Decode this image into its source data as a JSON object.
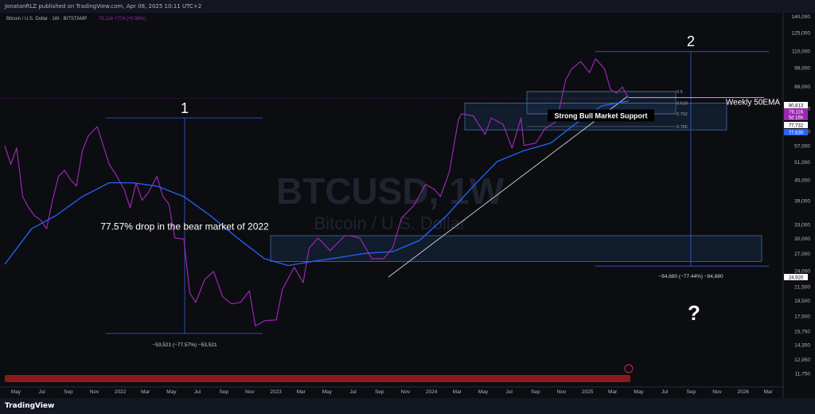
{
  "header": {
    "publish_line": "JonatanRLZ published on TradingView.com, Apr 08, 2025 10:11 UTC+2",
    "symbol_info": "Bitcoin / U.S. Dollar · 1W · BITSTAMP",
    "price_info": "79,116 +774 (+0.99%)"
  },
  "watermark": {
    "ticker": "BTCUSD, 1W",
    "name": "Bitcoin / U.S. Dollar"
  },
  "footer": {
    "brand": "TradingView"
  },
  "annotations": {
    "label_1": "1",
    "label_2": "2",
    "drop_text": "77.57% drop in the bear market of 2022",
    "measure_1": "−53,521 (−77.57%) −53,521",
    "measure_2": "−84,680 (−77.44%) −84,680",
    "question": "?",
    "support_label": "Strong Bull Market Support",
    "ema_label": "Weekly 50EMA"
  },
  "fib_levels": [
    {
      "label": "0.5",
      "price": 82900
    },
    {
      "label": "0.618",
      "price": 76500
    },
    {
      "label": "0.702",
      "price": 71000
    },
    {
      "label": "0.786",
      "price": 65000
    }
  ],
  "price_tags": [
    {
      "text": "80,813",
      "bg": "#ffffff",
      "fg": "#000000"
    },
    {
      "text": "79,116",
      "bg": "#9c27b0",
      "fg": "#ffffff"
    },
    {
      "text": "5d 16h",
      "bg": "#9c27b0",
      "fg": "#ffffff"
    },
    {
      "text": "77,732",
      "bg": "#ffffff",
      "fg": "#000000"
    },
    {
      "text": "77,630",
      "bg": "#2962ff",
      "fg": "#ffffff"
    },
    {
      "text": "24,920",
      "bg": "#ffffff",
      "fg": "#000000"
    }
  ],
  "colors": {
    "price_line": "#9c27b0",
    "ema_line": "#2962ff",
    "zone": "#1e3a5f",
    "measure": "#3b5bdb"
  },
  "chart_data": {
    "type": "line",
    "title": "",
    "y_scale": "log",
    "ylim": [
      10800,
      140000
    ],
    "y_ticks": [
      140000,
      125000,
      110000,
      98000,
      86000,
      74000,
      63000,
      57000,
      51000,
      45000,
      39000,
      33000,
      30000,
      27000,
      24000,
      21500,
      19500,
      17500,
      15750,
      14350,
      12950,
      11750
    ],
    "y_tick_labels": [
      "140,000",
      "125,000",
      "110,000",
      "98,000",
      "86,000",
      "74,000",
      "63,000",
      "57,000",
      "51,000",
      "45,000",
      "39,000",
      "33,000",
      "30,000",
      "27,000",
      "24,000",
      "21,500",
      "19,500",
      "17,500",
      "15,750",
      "14,350",
      "12,950",
      "11,750"
    ],
    "x_ticks": [
      "May",
      "Jul",
      "Sep",
      "Nov",
      "2022",
      "Mar",
      "May",
      "Jul",
      "Sep",
      "Nov",
      "2023",
      "Mar",
      "May",
      "Jul",
      "Sep",
      "Nov",
      "2024",
      "Mar",
      "May",
      "Jul",
      "Sep",
      "Nov",
      "2025",
      "Mar",
      "May",
      "Jul",
      "Sep",
      "Nov",
      "2026",
      "Mar"
    ],
    "series": [
      {
        "name": "Bitcoin / U.S. Dollar",
        "x": [
          "2021-04-05",
          "2021-04-19",
          "2021-05-03",
          "2021-05-17",
          "2021-05-31",
          "2021-06-14",
          "2021-06-28",
          "2021-07-12",
          "2021-07-26",
          "2021-08-09",
          "2021-08-23",
          "2021-09-06",
          "2021-09-20",
          "2021-10-04",
          "2021-10-18",
          "2021-11-08",
          "2021-11-22",
          "2021-12-06",
          "2021-12-20",
          "2022-01-10",
          "2022-01-24",
          "2022-02-07",
          "2022-02-21",
          "2022-03-07",
          "2022-03-28",
          "2022-04-11",
          "2022-04-25",
          "2022-05-09",
          "2022-05-30",
          "2022-06-13",
          "2022-06-27",
          "2022-07-18",
          "2022-08-08",
          "2022-08-29",
          "2022-09-19",
          "2022-10-10",
          "2022-10-31",
          "2022-11-14",
          "2022-12-05",
          "2023-01-02",
          "2023-01-16",
          "2023-02-13",
          "2023-03-06",
          "2023-03-20",
          "2023-04-10",
          "2023-05-08",
          "2023-06-12",
          "2023-06-26",
          "2023-07-17",
          "2023-08-14",
          "2023-09-11",
          "2023-10-02",
          "2023-10-23",
          "2023-11-20",
          "2023-12-18",
          "2024-01-08",
          "2024-01-22",
          "2024-02-12",
          "2024-03-04",
          "2024-03-11",
          "2024-04-08",
          "2024-05-06",
          "2024-05-20",
          "2024-06-17",
          "2024-07-08",
          "2024-07-29",
          "2024-08-05",
          "2024-09-02",
          "2024-09-23",
          "2024-10-21",
          "2024-11-11",
          "2024-11-25",
          "2024-12-16",
          "2025-01-06",
          "2025-01-20",
          "2025-02-10",
          "2025-02-24",
          "2025-03-10",
          "2025-03-24",
          "2025-04-07"
        ],
        "values": [
          57000,
          50000,
          56000,
          40000,
          37000,
          35000,
          34000,
          32000,
          39000,
          46000,
          48000,
          45000,
          43000,
          55000,
          61000,
          65000,
          57000,
          50000,
          47000,
          42000,
          37000,
          44000,
          39000,
          41000,
          46000,
          40000,
          38000,
          30000,
          29800,
          20500,
          19200,
          22500,
          23800,
          20000,
          19000,
          19200,
          20800,
          16300,
          16900,
          17000,
          21000,
          24500,
          22000,
          28000,
          30000,
          27500,
          30500,
          30500,
          30000,
          26000,
          26000,
          28000,
          34500,
          37500,
          43500,
          42000,
          40000,
          47500,
          68000,
          71000,
          70000,
          61500,
          69000,
          66000,
          56000,
          69000,
          57000,
          58000,
          64000,
          67500,
          90000,
          97000,
          102000,
          94500,
          104000,
          97000,
          84000,
          82000,
          85500,
          79116
        ]
      },
      {
        "name": "Weekly 50EMA",
        "x": [
          "2021-04-05",
          "2021-06-07",
          "2021-08-02",
          "2021-10-04",
          "2021-12-06",
          "2022-01-31",
          "2022-03-28",
          "2022-05-30",
          "2022-08-01",
          "2022-10-03",
          "2022-12-05",
          "2023-01-30",
          "2023-03-27",
          "2023-05-29",
          "2023-07-31",
          "2023-10-02",
          "2023-12-04",
          "2024-02-05",
          "2024-04-08",
          "2024-06-03",
          "2024-08-05",
          "2024-10-07",
          "2024-12-02",
          "2025-02-03",
          "2025-04-07"
        ],
        "values": [
          25000,
          32000,
          35000,
          40000,
          44000,
          44000,
          43000,
          40000,
          35000,
          30000,
          26000,
          24800,
          25500,
          26200,
          27000,
          27300,
          29500,
          35000,
          43000,
          51000,
          55000,
          58000,
          66000,
          75000,
          77630
        ]
      }
    ]
  }
}
